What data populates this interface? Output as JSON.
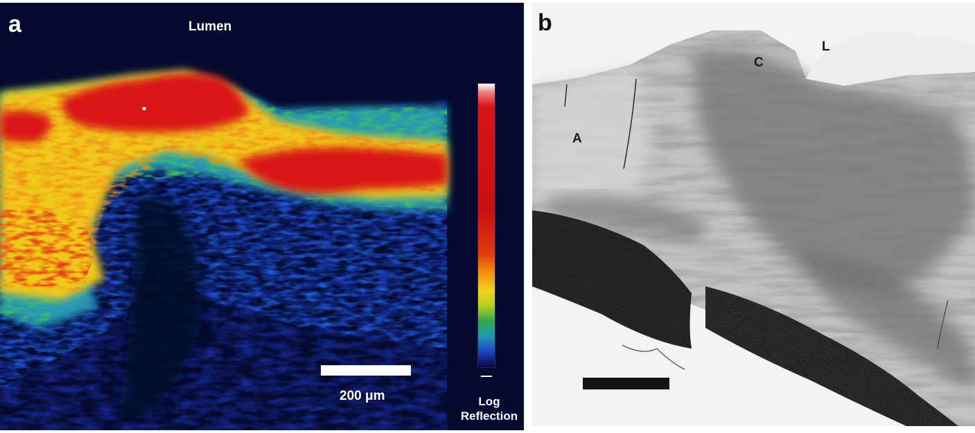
{
  "panel_a": {
    "letter": "a",
    "lumen_label": "Lumen",
    "scale_label": "200 μm",
    "colorbar_label_line1": "Log",
    "colorbar_label_line2": "Reflection",
    "colors": {
      "background": "#050a2e",
      "high": "#d81414",
      "mid": "#f4d21a",
      "low": "#1e4cc8"
    }
  },
  "panel_b": {
    "letter": "b",
    "label_c": "C",
    "label_l": "L",
    "label_a": "A"
  }
}
